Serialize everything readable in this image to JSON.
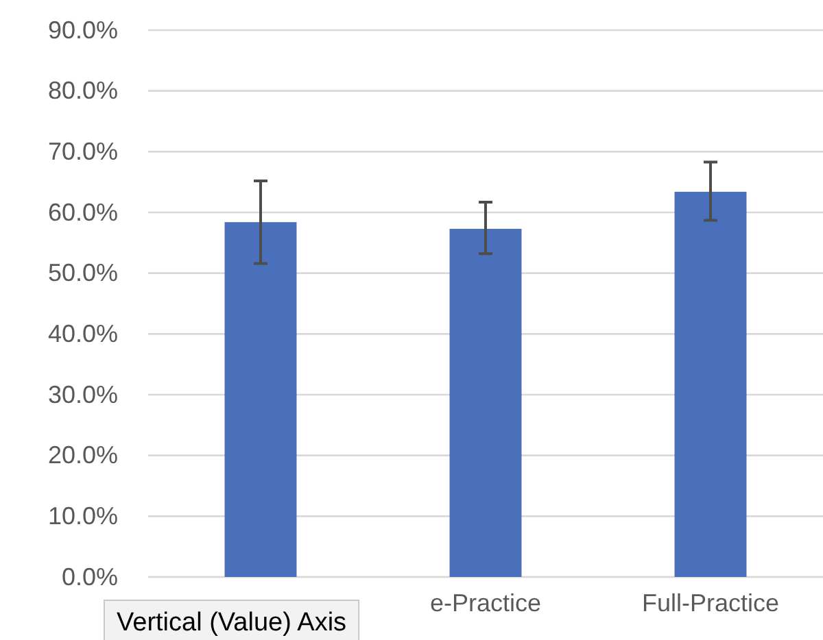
{
  "chart_data": {
    "type": "bar",
    "categories": [
      null,
      "e-Practice",
      "Full-Practice"
    ],
    "values": [
      58.4,
      57.3,
      63.4
    ],
    "color": "#4a70bb",
    "errors": [
      [
        51.6,
        65.2
      ],
      [
        53.2,
        61.7
      ],
      [
        58.7,
        68.3
      ]
    ],
    "ylim": [
      0,
      90
    ],
    "yticks": [
      {
        "value": 0,
        "label": "0.0%"
      },
      {
        "value": 10,
        "label": "10.0%"
      },
      {
        "value": 20,
        "label": "20.0%"
      },
      {
        "value": 30,
        "label": "30.0%"
      },
      {
        "value": 40,
        "label": "40.0%"
      },
      {
        "value": 50,
        "label": "50.0%"
      },
      {
        "value": 60,
        "label": "60.0%"
      },
      {
        "value": 70,
        "label": "70.0%"
      },
      {
        "value": 80,
        "label": "80.0%"
      },
      {
        "value": 90,
        "label": "90.0%"
      }
    ],
    "grid": "y",
    "annotations": [
      "Vertical (Value) Axis"
    ]
  }
}
